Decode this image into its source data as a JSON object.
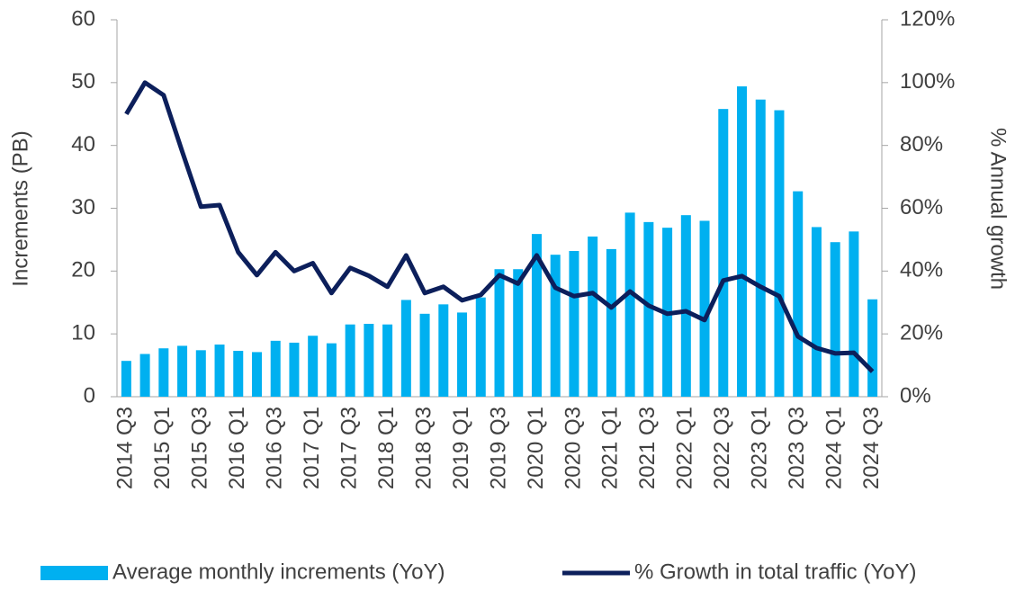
{
  "chart_data": {
    "type": "bar_line",
    "categories": [
      "2014 Q3",
      null,
      "2015 Q1",
      null,
      "2015 Q3",
      null,
      "2016 Q1",
      null,
      "2016 Q3",
      null,
      "2017 Q1",
      null,
      "2017 Q3",
      null,
      "2018 Q1",
      null,
      "2018 Q3",
      null,
      "2019 Q1",
      null,
      "2019 Q3",
      null,
      "2020 Q1",
      null,
      "2020 Q3",
      null,
      "2021 Q1",
      null,
      "2021 Q3",
      null,
      "2022 Q1",
      null,
      "2022 Q3",
      null,
      "2023 Q1",
      null,
      "2023 Q3",
      null,
      "2024 Q1",
      null,
      "2024 Q3"
    ],
    "series": [
      {
        "name": "Average monthly increments (YoY)",
        "type": "bar",
        "color": "#00b0f0",
        "values": [
          5.7,
          6.8,
          7.7,
          8.1,
          7.4,
          8.3,
          7.3,
          7.1,
          8.9,
          8.6,
          9.7,
          8.5,
          11.5,
          11.6,
          11.5,
          15.4,
          13.2,
          14.7,
          13.4,
          15.8,
          20.3,
          20.3,
          25.9,
          22.6,
          23.2,
          25.5,
          23.5,
          29.3,
          27.8,
          26.9,
          28.9,
          28.0,
          45.8,
          49.4,
          47.3,
          45.6,
          32.7,
          27.0,
          24.6,
          26.3,
          15.5
        ]
      },
      {
        "name": "% Growth in total traffic (YoY)",
        "type": "line",
        "axis": "y2",
        "color": "#0c1f5b",
        "values": [
          90,
          100,
          96,
          78,
          60.5,
          61,
          46,
          38.7,
          46,
          40,
          42.5,
          33,
          41,
          38.5,
          35,
          45,
          33,
          35,
          30.7,
          32.4,
          38.7,
          36,
          45,
          34.7,
          32,
          33,
          28.4,
          33.5,
          29,
          26.4,
          27.2,
          24.4,
          37,
          38.4,
          35,
          32,
          19.2,
          15.5,
          13.8,
          14,
          8
        ]
      }
    ],
    "y_label": "Increments (PB)",
    "y2_label": "% Annual growth",
    "ylim": [
      0,
      60
    ],
    "yticks": [
      0,
      10,
      20,
      30,
      40,
      50,
      60
    ],
    "y2lim": [
      0,
      120
    ],
    "y2ticks": [
      {
        "value": 0,
        "label": "0%"
      },
      {
        "value": 20,
        "label": "20%"
      },
      {
        "value": 40,
        "label": "40%"
      },
      {
        "value": 60,
        "label": "60%"
      },
      {
        "value": 80,
        "label": "80%"
      },
      {
        "value": 100,
        "label": "100%"
      },
      {
        "value": 120,
        "label": "120%"
      }
    ],
    "legend": "bottom"
  }
}
